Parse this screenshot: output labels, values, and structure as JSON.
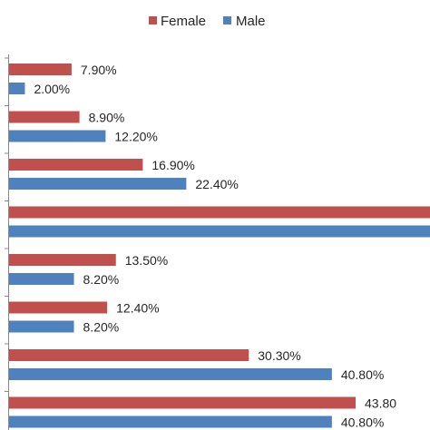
{
  "chart_data": {
    "type": "bar",
    "orientation": "horizontal",
    "legend_position": "top",
    "grid": false,
    "xlim": [
      0,
      53.2
    ],
    "categories": [
      "",
      "",
      "",
      "",
      "",
      "",
      "",
      ""
    ],
    "series": [
      {
        "name": "Female",
        "color": "#c0504d",
        "values": [
          7.9,
          8.9,
          16.9,
          55.0,
          13.5,
          12.4,
          30.3,
          43.8
        ],
        "labels": [
          "7.90%",
          "8.90%",
          "16.90%",
          "",
          "13.50%",
          "12.40%",
          "30.30%",
          "43.80"
        ]
      },
      {
        "name": "Male",
        "color": "#4f81bd",
        "values": [
          2.0,
          12.2,
          22.4,
          55.0,
          8.2,
          8.2,
          40.8,
          40.8
        ],
        "labels": [
          "2.00%",
          "12.20%",
          "22.40%",
          "",
          "8.20%",
          "8.20%",
          "40.80%",
          "40.80%"
        ]
      }
    ]
  }
}
